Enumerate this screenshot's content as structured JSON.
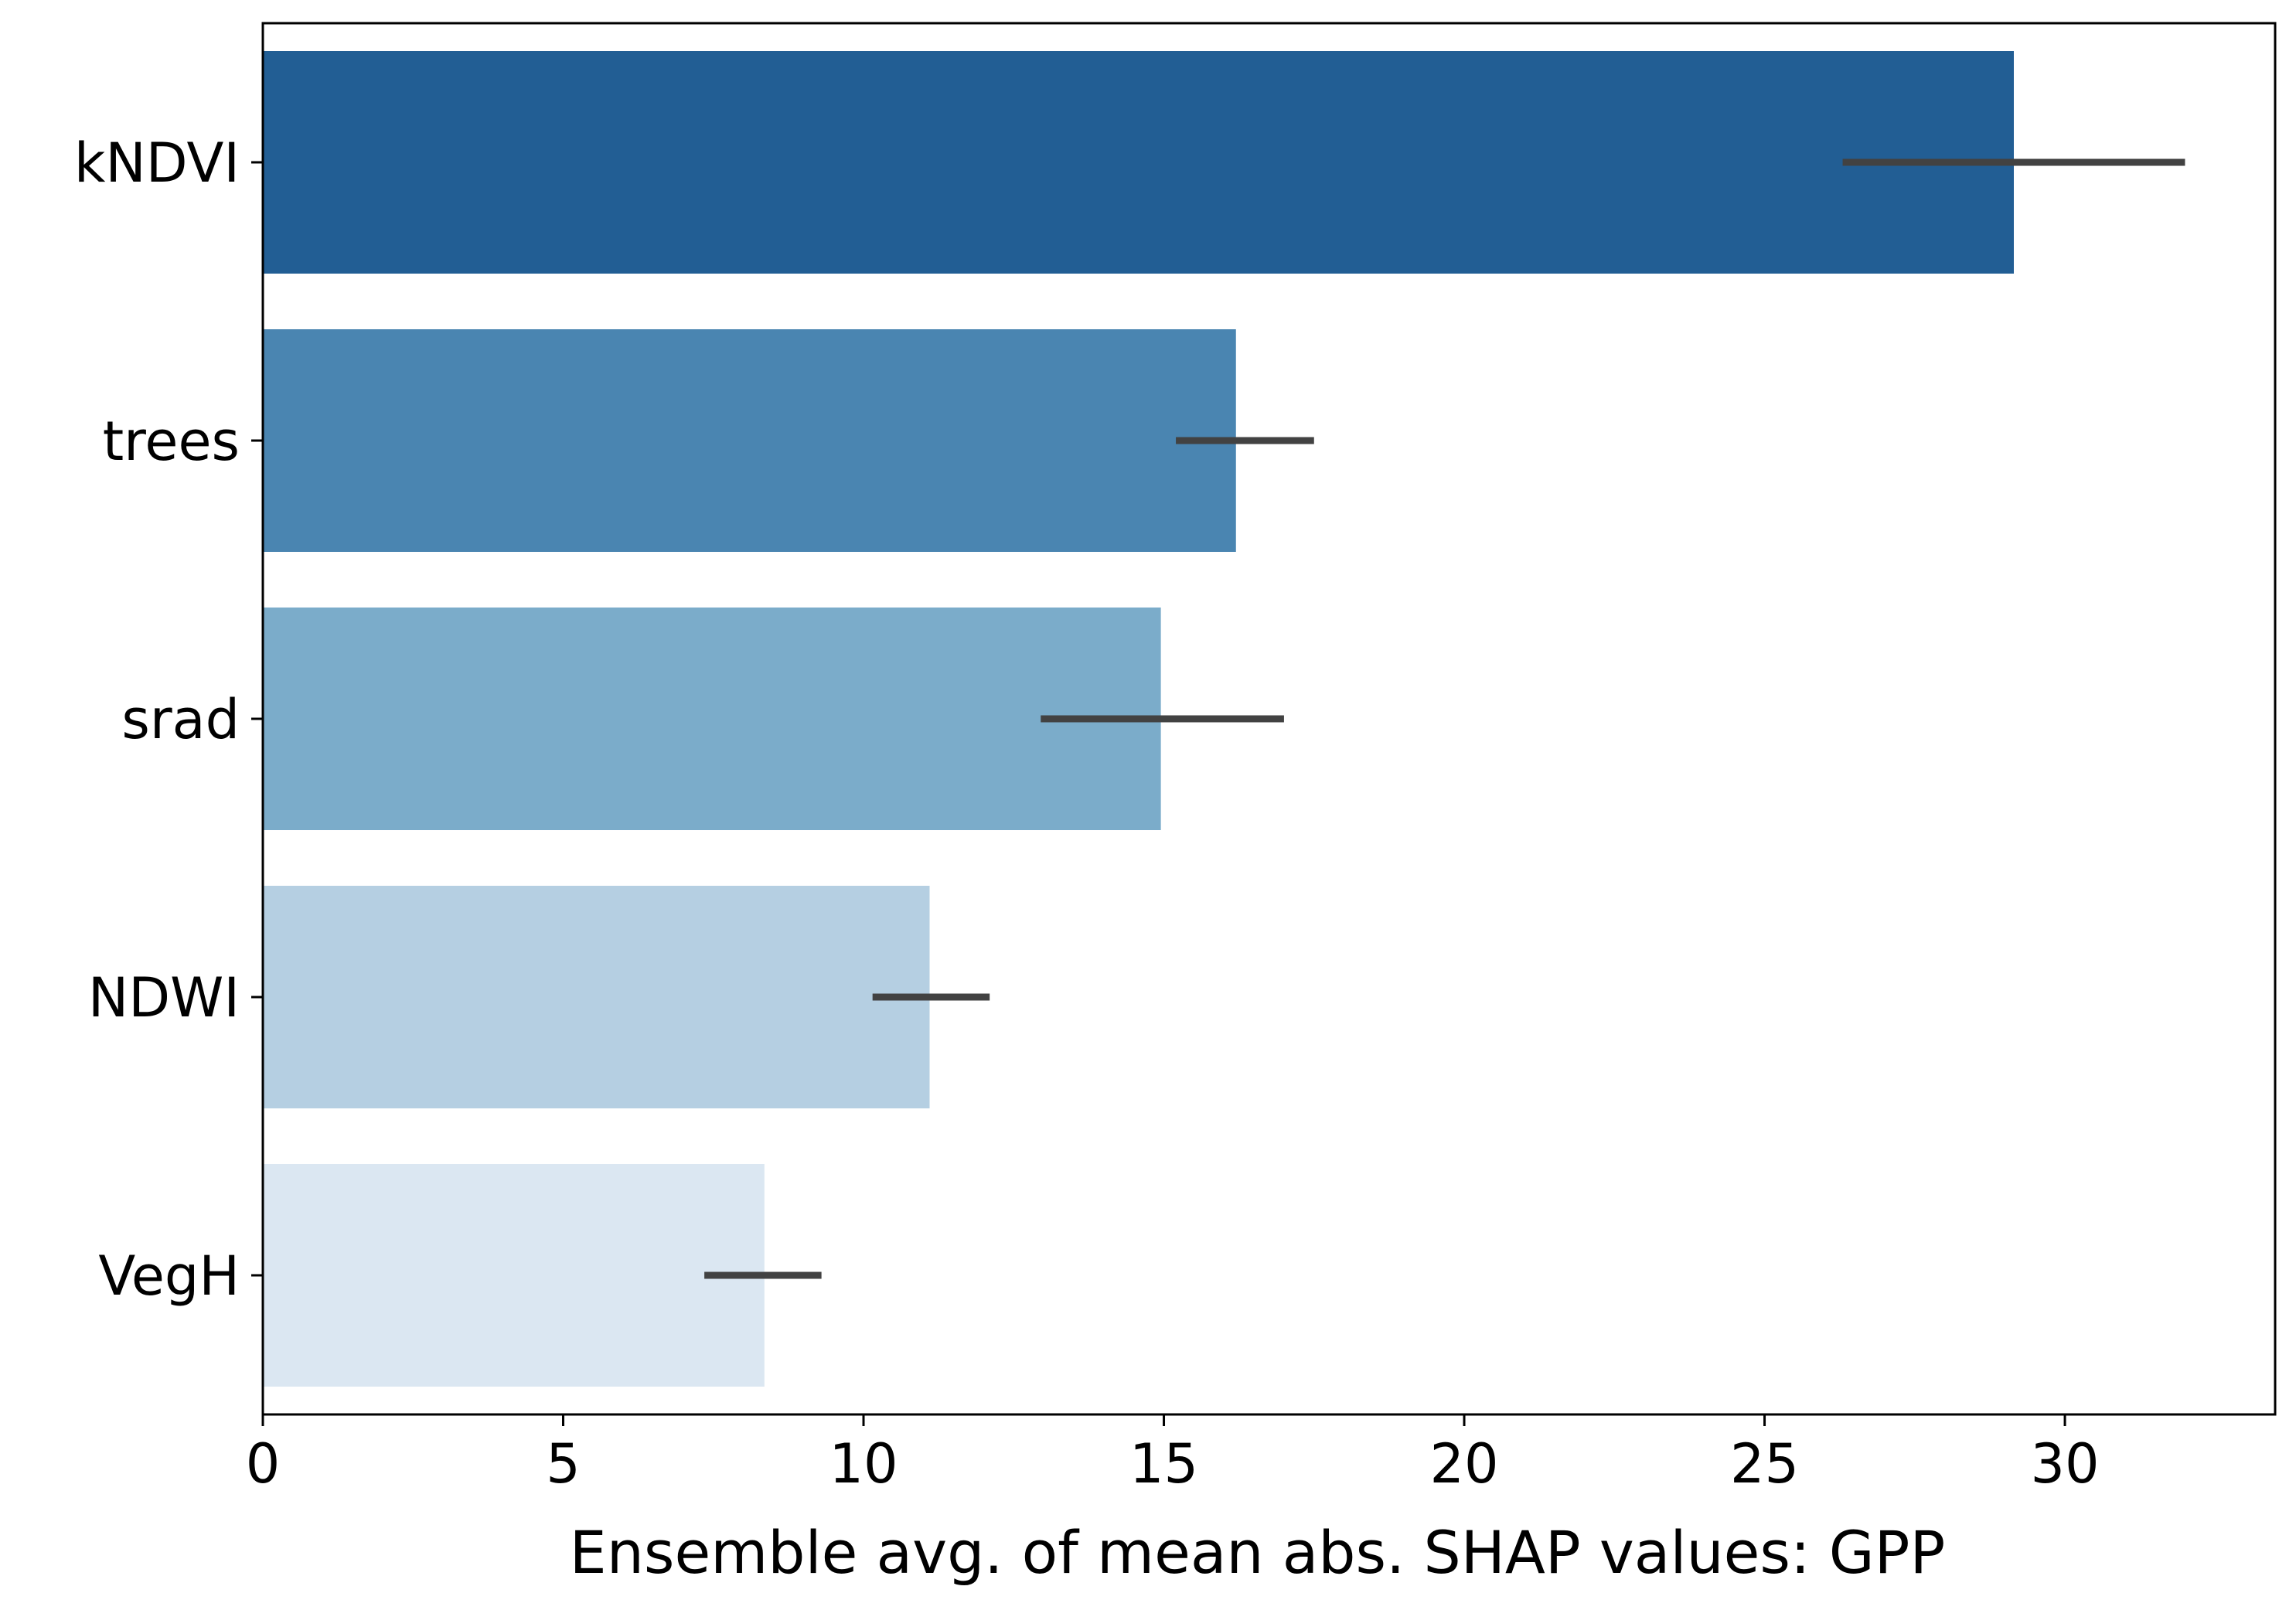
{
  "chart_data": {
    "type": "bar",
    "orientation": "horizontal",
    "title": "",
    "xlabel": "Ensemble avg. of mean abs. SHAP values: GPP",
    "ylabel": "",
    "xlim": [
      0,
      33.5
    ],
    "xticks": [
      0,
      5,
      10,
      15,
      20,
      25,
      30
    ],
    "grid": false,
    "categories": [
      "kNDVI",
      "trees",
      "srad",
      "NDWI",
      "VegH"
    ],
    "values": [
      29.15,
      16.2,
      14.95,
      11.1,
      8.35
    ],
    "error_low": [
      26.3,
      15.2,
      12.95,
      10.15,
      7.35
    ],
    "error_high": [
      32.0,
      17.5,
      17.0,
      12.1,
      9.3
    ],
    "colors": [
      "#225e94",
      "#4a85b1",
      "#7bacca",
      "#b5cfe2",
      "#dbe7f2"
    ]
  }
}
